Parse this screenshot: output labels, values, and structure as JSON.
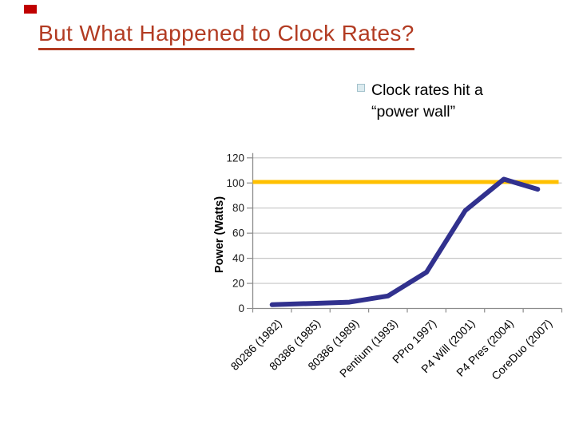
{
  "slide": {
    "title": "But What Happened to Clock Rates?",
    "bullet": {
      "line1": "Clock rates hit a",
      "line2": "“power wall”"
    }
  },
  "decorations": {
    "corner_square_color": "#c00000"
  },
  "colors": {
    "title": "#b23b22",
    "body_text": "#000000",
    "power_line": "#31318e",
    "power_wall_line": "#ffc000",
    "gridline": "#c6c6c6",
    "axis": "#8c8c8c",
    "tick_label": "#1a1a1a"
  },
  "chart_data": {
    "type": "line",
    "title": "",
    "categories": [
      "80286 (1982)",
      "80386 (1985)",
      "80386 (1989)",
      "Pentium (1993)",
      "PPro 1997)",
      "P4 Will (2001)",
      "P4 Pres (2004)",
      "CoreDuo (2007)"
    ],
    "series": [
      {
        "name": "Power",
        "values": [
          3,
          4,
          5,
          10,
          29,
          78,
          103,
          95
        ]
      }
    ],
    "reference_line": {
      "label": "power wall",
      "value": 100
    },
    "xlabel": "",
    "ylabel": "Power (Watts)",
    "ylim": [
      0,
      120
    ],
    "yticks": [
      0,
      20,
      40,
      60,
      80,
      100,
      120
    ],
    "grid": true,
    "legend": false
  }
}
